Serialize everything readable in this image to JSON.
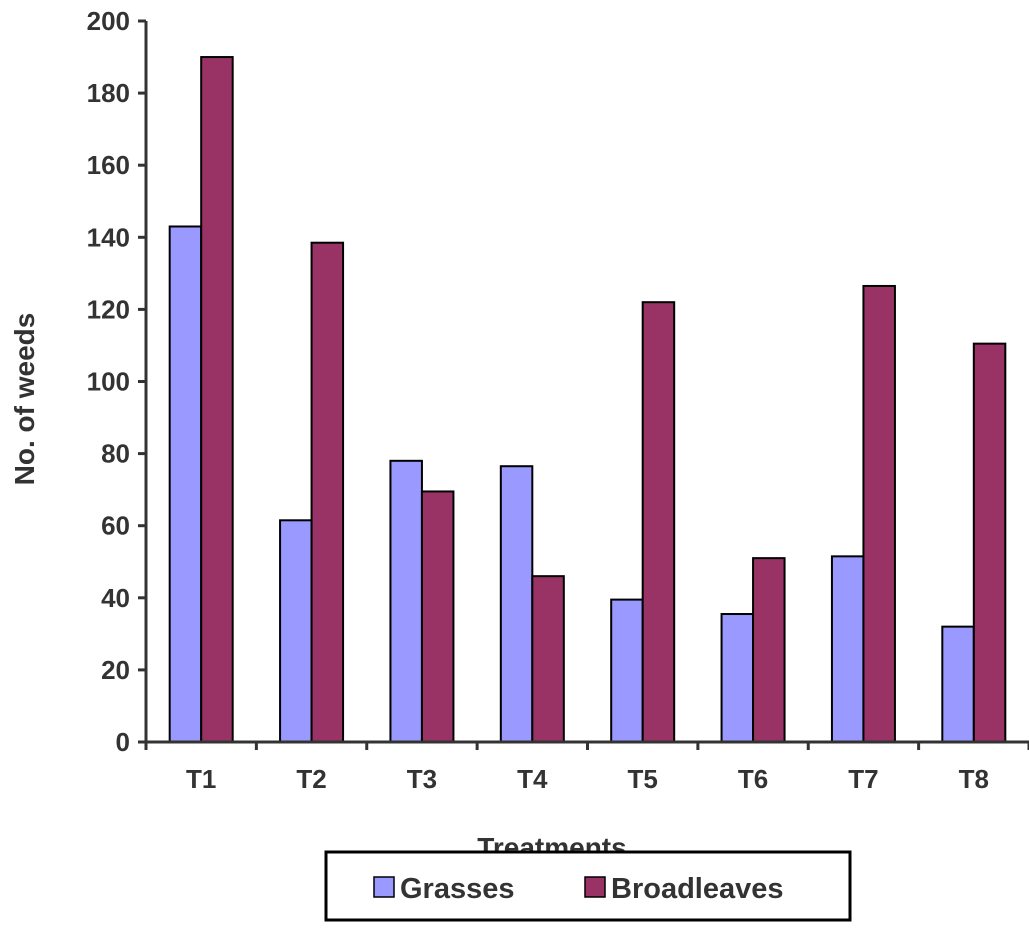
{
  "chart_data": {
    "type": "bar",
    "title": "",
    "xlabel": "Treatments",
    "ylabel": "No. of weeds",
    "categories": [
      "T1",
      "T2",
      "T3",
      "T4",
      "T5",
      "T6",
      "T7",
      "T8"
    ],
    "series": [
      {
        "name": "Grasses",
        "color": "#9999ff",
        "values": [
          143,
          61.5,
          78,
          76.5,
          39.5,
          35.5,
          51.5,
          32
        ]
      },
      {
        "name": "Broadleaves",
        "color": "#993366",
        "values": [
          190,
          138.5,
          69.5,
          46,
          122,
          51,
          126.5,
          110.5
        ]
      }
    ],
    "ylim": [
      0,
      200
    ],
    "yticks": [
      "0",
      "20",
      "40",
      "60",
      "80",
      "100",
      "120",
      "140",
      "160",
      "180",
      "200"
    ],
    "grid": false,
    "legend": "bottom-center"
  }
}
